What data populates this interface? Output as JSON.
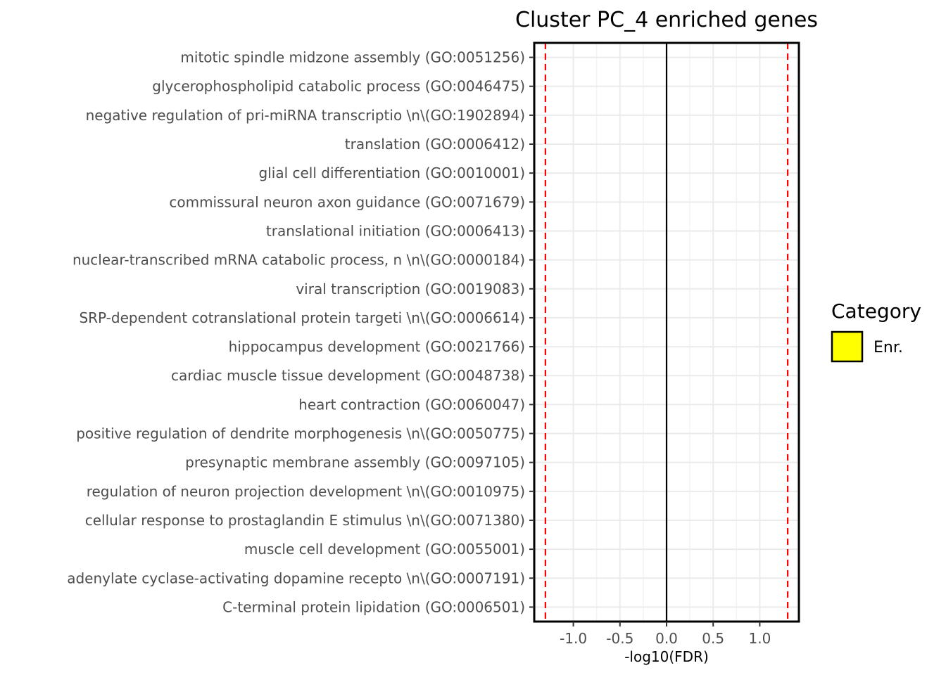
{
  "chart_data": {
    "type": "bar",
    "orientation": "horizontal",
    "title": "Cluster PC_4 enriched genes",
    "xlabel": "-log10(FDR)",
    "ylabel": "",
    "xlim": [
      -1.42,
      1.42
    ],
    "x_ticks": [
      -1.0,
      -0.5,
      0.0,
      0.5,
      1.0
    ],
    "x_tick_labels": [
      "-1.0",
      "-0.5",
      "0.0",
      "0.5",
      "1.0"
    ],
    "reference_lines": [
      {
        "value": -1.3,
        "style": "dashed",
        "color": "#ff0000"
      },
      {
        "value": 1.3,
        "style": "dashed",
        "color": "#ff0000"
      },
      {
        "value": 0.0,
        "style": "solid",
        "color": "#000000"
      }
    ],
    "grid": true,
    "categories": [
      "mitotic spindle midzone assembly (GO:0051256)",
      "glycerophospholipid catabolic process (GO:0046475)",
      "negative regulation of pri-miRNA transcriptio \\n\\(GO:1902894)",
      "translation (GO:0006412)",
      "glial cell differentiation (GO:0010001)",
      "commissural neuron axon guidance (GO:0071679)",
      "translational initiation (GO:0006413)",
      "nuclear-transcribed mRNA catabolic process, n \\n\\(GO:0000184)",
      "viral transcription (GO:0019083)",
      "SRP-dependent cotranslational protein targeti \\n\\(GO:0006614)",
      "hippocampus development (GO:0021766)",
      "cardiac muscle tissue development (GO:0048738)",
      "heart contraction (GO:0060047)",
      "positive regulation of dendrite morphogenesis \\n\\(GO:0050775)",
      "presynaptic membrane assembly (GO:0097105)",
      "regulation of neuron projection development  \\n\\(GO:0010975)",
      "cellular response to prostaglandin E stimulus \\n\\(GO:0071380)",
      "muscle cell development (GO:0055001)",
      "adenylate cyclase-activating dopamine recepto \\n\\(GO:0007191)",
      "C-terminal protein lipidation (GO:0006501)"
    ],
    "series": [
      {
        "name": "Enr.",
        "color": "#ffff00",
        "values": [
          0,
          0,
          0,
          0,
          0,
          0,
          0,
          0,
          0,
          0,
          0,
          0,
          0,
          0,
          0,
          0,
          0,
          0,
          0,
          0
        ]
      }
    ],
    "legend": {
      "title": "Category",
      "position": "right",
      "items": [
        {
          "label": "Enr.",
          "color": "#ffff00"
        }
      ]
    }
  }
}
